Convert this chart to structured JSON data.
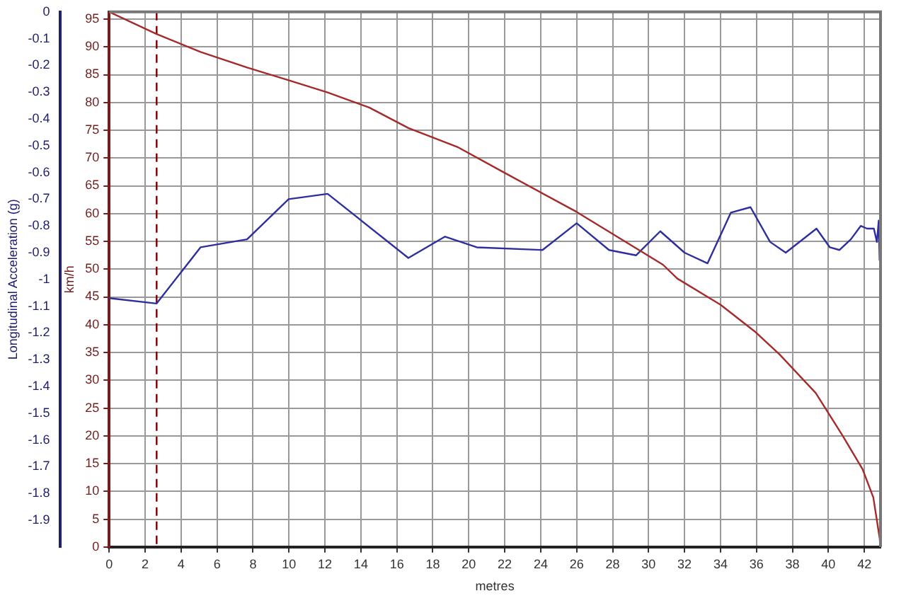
{
  "chart_data": {
    "type": "line",
    "xlabel": "metres",
    "ylabel": "km/h",
    "y2label": "Longitudinal Acceleration (g)",
    "xlim": [
      0,
      42.9
    ],
    "xticks": [
      0,
      2,
      4,
      6,
      8,
      10,
      12,
      14,
      16,
      18,
      20,
      22,
      24,
      26,
      28,
      30,
      32,
      34,
      36,
      38,
      40,
      42
    ],
    "ylim": [
      0,
      96.3
    ],
    "yticks": [
      0,
      5,
      10,
      15,
      20,
      25,
      30,
      35,
      40,
      45,
      50,
      55,
      60,
      65,
      70,
      75,
      80,
      85,
      90,
      95
    ],
    "y2lim": [
      -2,
      0
    ],
    "y2ticks": [
      -1.9,
      -1.8,
      -1.7,
      -1.6,
      -1.5,
      -1.4,
      -1.3,
      -1.2,
      -1.1,
      -1,
      -0.9,
      -0.8,
      -0.7,
      -0.6,
      -0.5,
      -0.4,
      -0.3,
      -0.2,
      -0.1,
      0
    ],
    "grid": true,
    "legend": false,
    "marker": "none",
    "line_style": "solid",
    "series": [
      {
        "color": "#a52a2a",
        "x": [
          0,
          2.64,
          5.08,
          7.67,
          9.98,
          12.15,
          14.46,
          16.64,
          19.36,
          21.9,
          26.0,
          30.8,
          31.6,
          34.0,
          35.9,
          37.3,
          39.3,
          40.8,
          41.9,
          42.5,
          42.85,
          42.9
        ],
        "values": [
          96.3,
          92.3,
          89.1,
          86.3,
          84.0,
          81.8,
          79.1,
          75.4,
          72.0,
          67.5,
          60.3,
          50.8,
          48.3,
          43.6,
          38.8,
          34.6,
          27.7,
          20.0,
          14.0,
          8.9,
          1.6,
          0
        ]
      },
      {
        "color": "#2e2e9e",
        "axis": "y2",
        "x": [
          0,
          2.64,
          5.08,
          7.67,
          9.98,
          12.15,
          16.64,
          18.68,
          20.45,
          24.1,
          26.0,
          27.8,
          29.3,
          30.65,
          32.0,
          33.28,
          34.58,
          35.67,
          36.76,
          37.63,
          39.34,
          40.08,
          40.62,
          41.25,
          41.8,
          42.15,
          42.53,
          42.7,
          42.8,
          42.85
        ],
        "values": [
          -1.07,
          -1.09,
          -0.88,
          -0.85,
          -0.7,
          -0.68,
          -0.92,
          -0.84,
          -0.88,
          -0.89,
          -0.79,
          -0.89,
          -0.91,
          -0.82,
          -0.9,
          -0.94,
          -0.75,
          -0.73,
          -0.86,
          -0.9,
          -0.81,
          -0.88,
          -0.89,
          -0.85,
          -0.8,
          -0.81,
          -0.81,
          -0.86,
          -0.78,
          -0.93
        ]
      }
    ],
    "ref_lines": [
      {
        "axis": "x",
        "value": 2.64,
        "color": "#800000",
        "line_style": "dashed"
      }
    ]
  }
}
